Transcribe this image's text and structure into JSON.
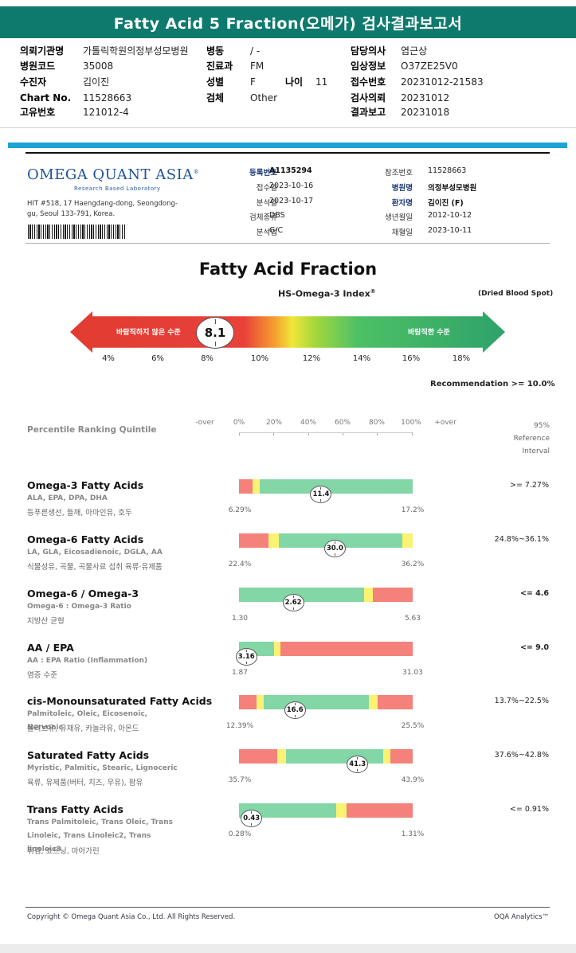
{
  "report_title": "Fatty Acid 5 Fraction(오메가) 검사결과보고서",
  "header": [
    {
      "k": "의뢰기관명",
      "v": "가톨릭학원의정부성모병원"
    },
    {
      "k": "병원코드",
      "v": "35008"
    },
    {
      "k": "수진자",
      "v": "김이진"
    },
    {
      "k": "Chart No.",
      "v": "11528663"
    },
    {
      "k": "고유번호",
      "v": "121012-4"
    },
    {
      "k": "병동",
      "v": "/ -"
    },
    {
      "k": "진료과",
      "v": "FM"
    },
    {
      "k": "성별",
      "v": "F"
    },
    {
      "k": "나이",
      "v": "11"
    },
    {
      "k": "검체",
      "v": "Other"
    },
    {
      "k": "담당의사",
      "v": "염근상"
    },
    {
      "k": "임상정보",
      "v": "O37ZE25V0"
    },
    {
      "k": "접수번호",
      "v": "20231012-21583"
    },
    {
      "k": "검사의뢰",
      "v": "20231012"
    },
    {
      "k": "결과보고",
      "v": "20231018"
    }
  ],
  "lab": {
    "logo": "OMEGA QUANT ASIA",
    "logo_mark": "®",
    "tagline": "Research Based Laboratory",
    "address": "HIT #518, 17 Haengdang-dong, Seongdong-gu, Seoul 133-791, Korea."
  },
  "panel": {
    "mid": [
      {
        "k": "등록번호",
        "v": "A1135294",
        "strong": true
      },
      {
        "k": "접수일",
        "v": "2023-10-16"
      },
      {
        "k": "분석일",
        "v": "2023-10-17"
      },
      {
        "k": "검체종류",
        "v": "DBS"
      },
      {
        "k": "분석법",
        "v": "G/C"
      }
    ],
    "right": [
      {
        "k": "참조번호",
        "v": "11528663"
      },
      {
        "k": "병원명",
        "v": "의정부성모병원",
        "strong": true
      },
      {
        "k": "환자명",
        "v": "김이진 (F)",
        "strong": true
      },
      {
        "k": "생년월일",
        "v": "2012-10-12"
      },
      {
        "k": "채혈일",
        "v": "2023-10-11"
      }
    ]
  },
  "section_title": "Fatty Acid Fraction",
  "index": {
    "label": "HS-Omega-3 Index",
    "reg": "®",
    "sample": "(Dried Blood Spot)",
    "value": "8.1",
    "value_num": 8.1,
    "left_text": "바람직하지 않은 수준",
    "right_text": "바람직한 수준",
    "ticks": [
      "4%",
      "6%",
      "8%",
      "10%",
      "12%",
      "14%",
      "16%",
      "18%"
    ],
    "recommendation": "Recommendation  >= 10.0%"
  },
  "scale": {
    "title": "Percentile Ranking Quintile",
    "labels": [
      "-over",
      "0%",
      "20%",
      "40%",
      "60%",
      "80%",
      "100%",
      "+over"
    ],
    "ref_title_1": "95%",
    "ref_title_2": "Reference Interval"
  },
  "rows": [
    {
      "title": "Omega-3 Fatty Acids",
      "sub": "ALA, EPA, DPA, DHA",
      "kr": "등푸른생선, 들깨, 아마인유, 호두",
      "value": "11.4",
      "marker_pct": 0.47,
      "min": "6.29%",
      "max": "17.2%",
      "ref": ">= 7.27%",
      "ref_bold": false,
      "segments": [
        {
          "c": "red",
          "w": 0.08
        },
        {
          "c": "yellow",
          "w": 0.04
        },
        {
          "c": "green",
          "w": 0.88
        }
      ]
    },
    {
      "title": "Omega-6 Fatty Acids",
      "sub": "LA, GLA, Eicosadienoic, DGLA, AA",
      "kr": "식물성유, 곡물, 곡물사료 섭취 육류·유제품",
      "value": "30.0",
      "marker_pct": 0.55,
      "min": "22.4%",
      "max": "36.2%",
      "ref": "24.8%~36.1%",
      "ref_bold": false,
      "segments": [
        {
          "c": "red",
          "w": 0.17
        },
        {
          "c": "yellow",
          "w": 0.06
        },
        {
          "c": "green",
          "w": 0.71
        },
        {
          "c": "yellow",
          "w": 0.06
        }
      ]
    },
    {
      "title": "Omega-6 / Omega-3",
      "sub": "Omega-6 : Omega-3 Ratio",
      "kr": "지방산 균형",
      "value": "2.62",
      "marker_pct": 0.31,
      "min": "1.30",
      "max": "5.63",
      "ref": "<= 4.6",
      "ref_bold": true,
      "segments": [
        {
          "c": "green",
          "w": 0.72
        },
        {
          "c": "yellow",
          "w": 0.05
        },
        {
          "c": "red",
          "w": 0.23
        }
      ]
    },
    {
      "title": "AA / EPA",
      "sub": "AA : EPA Ratio (Inflammation)",
      "kr": "염증 수준",
      "value": "3.16",
      "marker_pct": 0.04,
      "min": "1.87",
      "max": "31.03",
      "ref": "<= 9.0",
      "ref_bold": true,
      "segments": [
        {
          "c": "green",
          "w": 0.2
        },
        {
          "c": "yellow",
          "w": 0.04
        },
        {
          "c": "red",
          "w": 0.76
        }
      ]
    },
    {
      "title": "cis-Monounsaturated Fatty Acids",
      "sub": "Palmitoleic, Oleic, Eicosenoic, Nervonic",
      "kr": "올리브유, 유채유, 카놀라유, 아몬드",
      "value": "16.6",
      "marker_pct": 0.32,
      "min": "12.39%",
      "max": "25.5%",
      "ref": "13.7%~22.5%",
      "ref_bold": false,
      "segments": [
        {
          "c": "red",
          "w": 0.1
        },
        {
          "c": "yellow",
          "w": 0.04
        },
        {
          "c": "green",
          "w": 0.61
        },
        {
          "c": "yellow",
          "w": 0.05
        },
        {
          "c": "red",
          "w": 0.2
        }
      ]
    },
    {
      "title": "Saturated Fatty Acids",
      "sub": "Myristic, Palmitic, Stearic, Lignoceric",
      "kr": "육류, 유제품(버터, 치즈, 우유), 팜유",
      "value": "41.3",
      "marker_pct": 0.68,
      "min": "35.7%",
      "max": "43.9%",
      "ref": "37.6%~42.8%",
      "ref_bold": false,
      "segments": [
        {
          "c": "red",
          "w": 0.22
        },
        {
          "c": "yellow",
          "w": 0.05
        },
        {
          "c": "green",
          "w": 0.56
        },
        {
          "c": "yellow",
          "w": 0.04
        },
        {
          "c": "red",
          "w": 0.13
        }
      ]
    },
    {
      "title": "Trans Fatty Acids",
      "sub": "Trans Palmitoleic, Trans Oleic, Trans Linoleic, Trans Linoleic2, Trans linoleic3",
      "kr": "튀김, 쇼트닝, 마아가린",
      "value": "0.43",
      "marker_pct": 0.07,
      "min": "0.28%",
      "max": "1.31%",
      "ref": "<= 0.91%",
      "ref_bold": false,
      "segments": [
        {
          "c": "green",
          "w": 0.56
        },
        {
          "c": "yellow",
          "w": 0.06
        },
        {
          "c": "red",
          "w": 0.38
        }
      ]
    }
  ],
  "colors": {
    "red": "#f4817a",
    "yellow": "#fbf274",
    "green": "#83d6a5",
    "title_bar": "#0d7a6d",
    "blue_bar": "#1da3d6"
  },
  "footer": {
    "left": "Copyright © Omega Quant Asia Co., Ltd.  All Rights Reserved.",
    "right": "OQA Analytics™"
  }
}
